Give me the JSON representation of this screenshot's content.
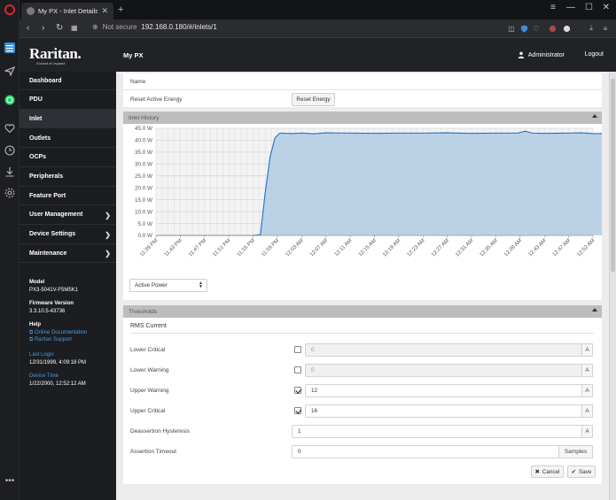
{
  "browser": {
    "tab_title": "My PX - Inlet Details 1",
    "url_security": "Not secure",
    "url": "192.168.0.180/#/inlets/1"
  },
  "header": {
    "brand": "Raritan.",
    "brand_sub": "A brand of Legrand",
    "device_name": "My PX",
    "user": "Administrator",
    "logout": "Logout"
  },
  "sidebar": {
    "items": [
      {
        "label": "Dashboard",
        "chevron": false
      },
      {
        "label": "PDU",
        "chevron": false
      },
      {
        "label": "Inlet",
        "chevron": false,
        "active": true
      },
      {
        "label": "Outlets",
        "chevron": false
      },
      {
        "label": "OCPs",
        "chevron": false
      },
      {
        "label": "Peripherals",
        "chevron": false
      },
      {
        "label": "Feature Port",
        "chevron": false
      },
      {
        "label": "User Management",
        "chevron": true
      },
      {
        "label": "Device Settings",
        "chevron": true
      },
      {
        "label": "Maintenance",
        "chevron": true
      }
    ],
    "model_label": "Model",
    "model_value": "PX3-5041V-F5M5K1",
    "firmware_label": "Firmware Version",
    "firmware_value": "3.3.10.5-43736",
    "help_label": "Help",
    "help_link1": "Online Documentation",
    "help_link2": "Raritan Support",
    "last_login_label": "Last Login",
    "last_login_value": "12/31/1999, 4:09:18 PM",
    "device_time_label": "Device Time",
    "device_time_value": "1/22/2000, 12:52:12 AM"
  },
  "settings": {
    "name_label": "Name",
    "reset_energy_label": "Reset Active Energy",
    "reset_energy_button": "Reset Energy"
  },
  "inlet_history": {
    "title": "Inlet History",
    "selector_value": "Active Power"
  },
  "chart_data": {
    "type": "area",
    "x": [
      "11:39 PM",
      "11:43 PM",
      "11:47 PM",
      "11:51 PM",
      "11:55 PM",
      "11:59 PM",
      "12:03 AM",
      "12:07 AM",
      "12:11 AM",
      "12:15 AM",
      "12:19 AM",
      "12:23 AM",
      "12:27 AM",
      "12:31 AM",
      "12:35 AM",
      "12:39 AM",
      "12:43 AM",
      "12:47 AM",
      "12:52 AM"
    ],
    "yticks": [
      "0.0 W",
      "5.0 W",
      "10.0 W",
      "15.0 W",
      "20.0 W",
      "25.0 W",
      "30.0 W",
      "35.0 W",
      "40.0 W",
      "45.0 W"
    ],
    "ylim": [
      0,
      45
    ],
    "series": [
      {
        "values": [
          [
            0,
            0
          ],
          [
            1,
            0
          ],
          [
            2,
            0
          ],
          [
            3,
            0
          ],
          [
            4,
            0
          ],
          [
            4.3,
            0.3
          ],
          [
            4.5,
            18
          ],
          [
            4.7,
            33
          ],
          [
            4.9,
            41
          ],
          [
            5.1,
            43
          ],
          [
            5.6,
            42.8
          ],
          [
            6.0,
            43.0
          ],
          [
            6.5,
            42.7
          ],
          [
            7.0,
            43.1
          ],
          [
            8,
            43.0
          ],
          [
            9,
            42.9
          ],
          [
            10,
            43.0
          ],
          [
            11,
            43.0
          ],
          [
            12,
            43.1
          ],
          [
            13,
            42.9
          ],
          [
            14,
            43.0
          ],
          [
            14.9,
            43.0
          ],
          [
            15.2,
            43.8
          ],
          [
            15.5,
            43.0
          ],
          [
            16,
            42.9
          ],
          [
            17,
            43.0
          ],
          [
            17.5,
            43.1
          ],
          [
            18,
            42.8
          ],
          [
            18.9,
            42.8
          ]
        ]
      }
    ],
    "grid": true,
    "line_color": "#1f6fc4",
    "fill_color": "#b5cee4"
  },
  "thresholds": {
    "title": "Thresholds",
    "subtitle": "RMS Current",
    "rows": [
      {
        "label": "Lower Critical",
        "checkbox": true,
        "checked": false,
        "value": "0",
        "unit": "A",
        "disabled": true
      },
      {
        "label": "Lower Warning",
        "checkbox": true,
        "checked": false,
        "value": "0",
        "unit": "A",
        "disabled": true
      },
      {
        "label": "Upper Warning",
        "checkbox": true,
        "checked": true,
        "value": "12",
        "unit": "A",
        "disabled": false
      },
      {
        "label": "Upper Critical",
        "checkbox": true,
        "checked": true,
        "value": "16",
        "unit": "A",
        "disabled": false
      },
      {
        "label": "Deassertion Hysteresis",
        "checkbox": false,
        "value": "1",
        "unit": "A",
        "disabled": false
      },
      {
        "label": "Assertion Timeout",
        "checkbox": false,
        "value": "0",
        "unit": "Samples",
        "disabled": false
      }
    ],
    "cancel_button": "Cancel",
    "save_button": "Save"
  }
}
